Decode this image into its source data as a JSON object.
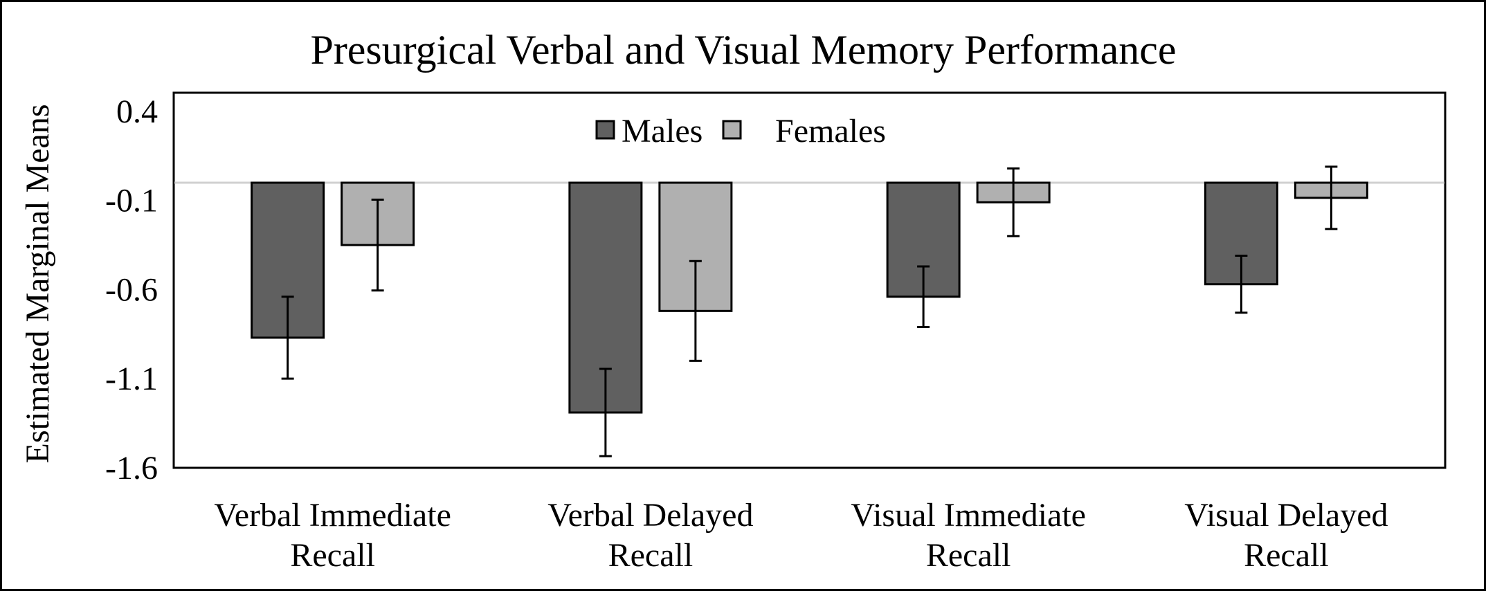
{
  "chart_data": {
    "type": "bar",
    "title": "Presurgical Verbal and Visual Memory Performance",
    "xlabel": "",
    "ylabel": "Estimated Marginal Means",
    "ylim": [
      -1.6,
      0.5
    ],
    "yticks": [
      0.4,
      -0.1,
      -0.6,
      -1.1,
      -1.6
    ],
    "ytick_labels": [
      "0.4",
      "-0.1",
      "-0.6",
      "-1.1",
      "-1.6"
    ],
    "categories": [
      [
        "Verbal Immediate",
        "Recall"
      ],
      [
        "Verbal Delayed",
        "Recall"
      ],
      [
        "Visual Immediate",
        "Recall"
      ],
      [
        "Visual Delayed",
        "Recall"
      ]
    ],
    "legend_position": "top-center",
    "series": [
      {
        "name": "Males",
        "color": "#606060",
        "values": [
          -0.87,
          -1.29,
          -0.64,
          -0.57
        ],
        "errors": [
          0.23,
          0.245,
          0.17,
          0.16
        ]
      },
      {
        "name": "Females",
        "color": "#b0b0b0",
        "values": [
          -0.35,
          -0.72,
          -0.11,
          -0.085
        ],
        "errors": [
          0.255,
          0.28,
          0.19,
          0.175
        ]
      }
    ]
  }
}
